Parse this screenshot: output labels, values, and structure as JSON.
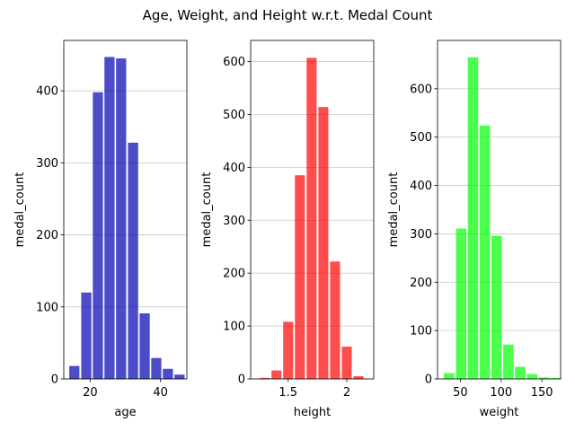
{
  "suptitle": "Age, Weight, and Height w.r.t. Medal Count",
  "chart_data": [
    {
      "type": "bar",
      "title": "",
      "xlabel": "age",
      "ylabel": "medal_count",
      "color": "#0000b0",
      "xlim": [
        12.5,
        47.5
      ],
      "ylim": [
        0,
        470
      ],
      "x_ticks": [
        20,
        40
      ],
      "y_ticks": [
        0,
        100,
        200,
        300,
        400
      ],
      "bins": [
        {
          "x": 15.5,
          "value": 18
        },
        {
          "x": 18.9,
          "value": 120
        },
        {
          "x": 22.2,
          "value": 398
        },
        {
          "x": 25.5,
          "value": 447
        },
        {
          "x": 28.8,
          "value": 445
        },
        {
          "x": 32.2,
          "value": 328
        },
        {
          "x": 35.5,
          "value": 91
        },
        {
          "x": 38.8,
          "value": 29
        },
        {
          "x": 42.1,
          "value": 14
        },
        {
          "x": 45.4,
          "value": 6
        }
      ]
    },
    {
      "type": "bar",
      "title": "",
      "xlabel": "height",
      "ylabel": "medal_count",
      "color": "#ff0000",
      "xlim": [
        1.18,
        2.23
      ],
      "ylim": [
        0,
        640
      ],
      "x_ticks": [
        1.5,
        2.0
      ],
      "y_ticks": [
        0,
        100,
        200,
        300,
        400,
        500,
        600
      ],
      "bins": [
        {
          "x": 1.3,
          "value": 2
        },
        {
          "x": 1.4,
          "value": 16
        },
        {
          "x": 1.5,
          "value": 108
        },
        {
          "x": 1.6,
          "value": 385
        },
        {
          "x": 1.7,
          "value": 607
        },
        {
          "x": 1.8,
          "value": 514
        },
        {
          "x": 1.9,
          "value": 222
        },
        {
          "x": 2.0,
          "value": 61
        },
        {
          "x": 2.1,
          "value": 5
        }
      ]
    },
    {
      "type": "bar",
      "title": "",
      "xlabel": "weight",
      "ylabel": "medal_count",
      "color": "#00ff00",
      "xlim": [
        22,
        173
      ],
      "ylim": [
        0,
        700
      ],
      "x_ticks": [
        50,
        100,
        150
      ],
      "y_ticks": [
        0,
        100,
        200,
        300,
        400,
        500,
        600
      ],
      "bins": [
        {
          "x": 36,
          "value": 12
        },
        {
          "x": 51,
          "value": 311
        },
        {
          "x": 65.5,
          "value": 665
        },
        {
          "x": 80,
          "value": 524
        },
        {
          "x": 94.5,
          "value": 296
        },
        {
          "x": 109,
          "value": 71
        },
        {
          "x": 123.5,
          "value": 25
        },
        {
          "x": 138,
          "value": 10
        },
        {
          "x": 152.5,
          "value": 3
        },
        {
          "x": 167,
          "value": 2
        }
      ]
    }
  ]
}
